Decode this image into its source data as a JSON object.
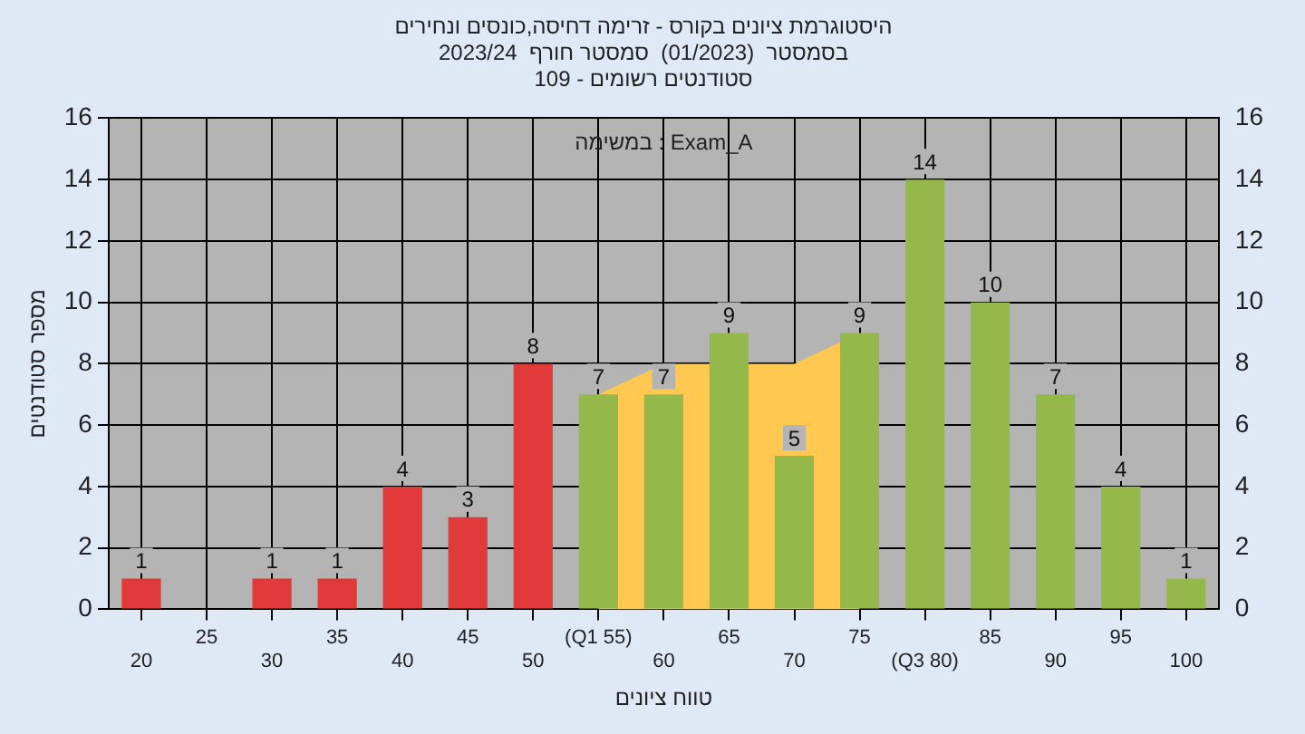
{
  "chart_data": {
    "type": "bar",
    "title": "היסטוגרמת ציונים בקורס - זרימה דחיסה,כונסים ונחירים",
    "subtitle": "בסמסטר  (01/2023)  סמסטר חורף  2023/24\nסטודנטים רשומים - 109",
    "xlabel": "טווח ציונים",
    "ylabel": "מספר סטודנטים",
    "annotations": [
      "במשימה : Exam_A"
    ],
    "categories": [
      "20",
      "25",
      "30",
      "35",
      "40",
      "45",
      "50",
      "(Q1 55)",
      "60",
      "65",
      "70",
      "75",
      "(Q3 80)",
      "85",
      "90",
      "95",
      "100"
    ],
    "series": [
      {
        "colors": [
          "#e23a3a",
          "#e23a3a",
          "#e23a3a",
          "#e23a3a",
          "#e23a3a",
          "#e23a3a",
          "#e23a3a",
          "#95b84a",
          "#95b84a",
          "#95b84a",
          "#95b84a",
          "#95b84a",
          "#95b84a",
          "#95b84a",
          "#95b84a",
          "#95b84a",
          "#95b84a"
        ],
        "values": [
          1,
          0,
          1,
          1,
          4,
          3,
          8,
          7,
          7,
          9,
          5,
          9,
          14,
          10,
          7,
          4,
          1
        ],
        "value_labels": [
          "1",
          null,
          "1",
          "1",
          "4",
          "3",
          "8",
          "7",
          "7",
          "9",
          "5",
          "9",
          "14",
          "10",
          "7",
          "4",
          "1"
        ]
      },
      {
        "type": "area",
        "color": "#ffc850",
        "values": [
          null,
          null,
          null,
          null,
          null,
          null,
          null,
          7,
          8,
          null,
          8,
          9,
          null,
          null,
          null,
          null,
          null
        ]
      }
    ],
    "ylim": [
      0,
      16
    ],
    "yticks": [
      0,
      2,
      4,
      6,
      8,
      10,
      12,
      14,
      16
    ],
    "y2lim": [
      0,
      16
    ],
    "y2ticks": [
      0,
      2,
      4,
      6,
      8,
      10,
      12,
      14,
      16
    ],
    "grid": true,
    "legend": false
  }
}
